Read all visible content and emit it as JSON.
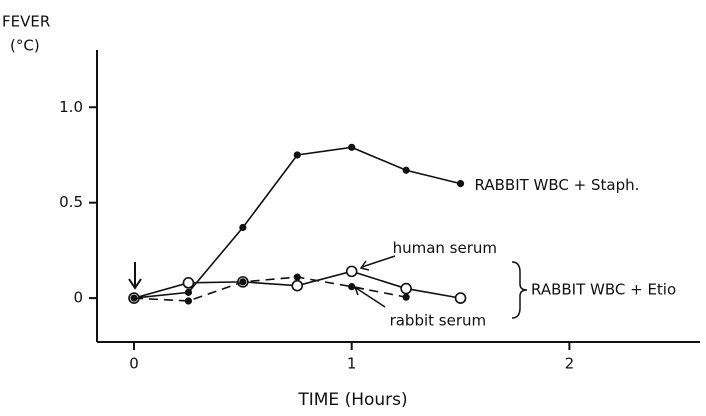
{
  "chart_data": {
    "type": "line",
    "ylabel": [
      "FEVER",
      "(°C)"
    ],
    "xlabel": "TIME (Hours)",
    "xlim": [
      -0.17,
      2.6
    ],
    "xticks": [
      0,
      1,
      2
    ],
    "ylim": [
      -0.23,
      1.3
    ],
    "yticks": [
      0,
      0.5,
      {
        "value": 1,
        "label": "1.0"
      }
    ],
    "series": [
      {
        "name": "RABBIT WBC + Staph.",
        "color": "#111111",
        "marker": "filled",
        "dashed": false,
        "x": [
          0,
          0.25,
          0.5,
          0.75,
          1,
          1.25,
          1.5
        ],
        "values": [
          0,
          0.03,
          0.37,
          0.75,
          0.79,
          0.67,
          0.6
        ]
      },
      {
        "name": "human serum",
        "color": "#111111",
        "marker": "open",
        "dashed": false,
        "x": [
          0,
          0.25,
          0.5,
          0.75,
          1,
          1.25,
          1.5
        ],
        "values": [
          0,
          0.08,
          0.085,
          0.065,
          0.14,
          0.05,
          0
        ]
      },
      {
        "name": "rabbit serum",
        "color": "#111111",
        "marker": "filled",
        "dashed": true,
        "x": [
          0,
          0.25,
          0.5,
          0.75,
          1,
          1.25
        ],
        "values": [
          0,
          -0.015,
          0.085,
          0.11,
          0.06,
          0.005
        ]
      }
    ],
    "annotations": [
      "RABBIT WBC + Etio"
    ]
  }
}
